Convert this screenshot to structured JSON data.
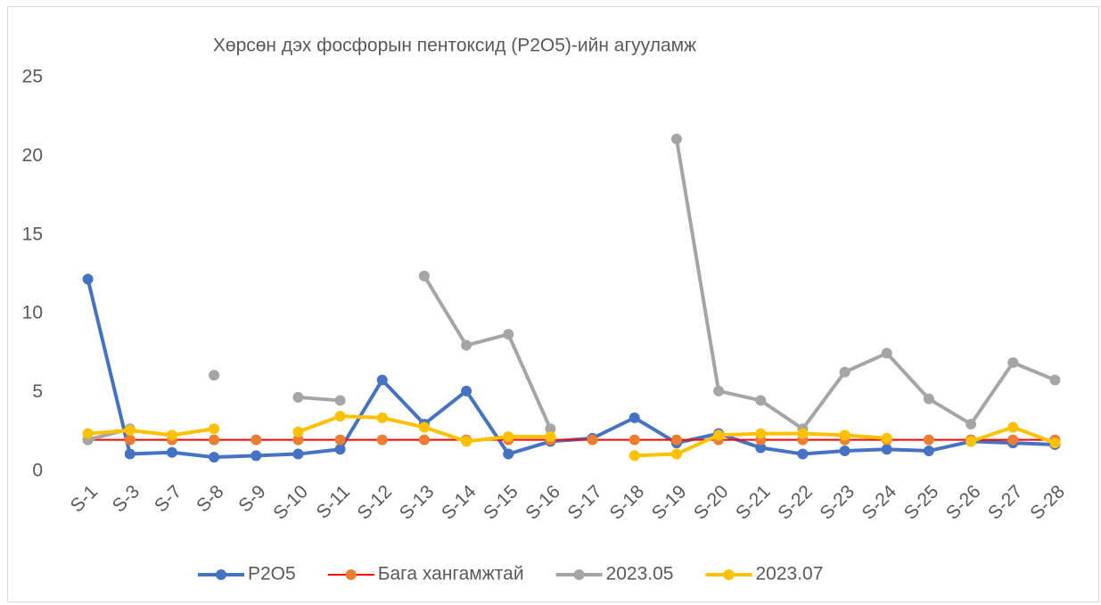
{
  "chart_data": {
    "type": "line",
    "title": "Хөрсөн дэх фосфорын пентоксид (P2O5)-ийн агууламж",
    "categories": [
      "S-1",
      "S-3",
      "S-7",
      "S-8",
      "S-9",
      "S-10",
      "S-11",
      "S-12",
      "S-13",
      "S-14",
      "S-15",
      "S-16",
      "S-17",
      "S-18",
      "S-19",
      "S-20",
      "S-21",
      "S-22",
      "S-23",
      "S-24",
      "S-25",
      "S-26",
      "S-27",
      "S-28"
    ],
    "series": [
      {
        "name": "P2O5",
        "color": "#4472c4",
        "marker_color": "#4472c4",
        "values": [
          12.2,
          1.1,
          1.2,
          0.9,
          1.0,
          1.1,
          1.4,
          5.8,
          3.0,
          5.1,
          1.1,
          1.9,
          2.1,
          3.4,
          1.8,
          2.4,
          1.5,
          1.1,
          1.3,
          1.4,
          1.3,
          1.9,
          1.8,
          1.7
        ]
      },
      {
        "name": "Бага хангамжтай",
        "color": "#ff0000",
        "marker_color": "#ed7d31",
        "values": [
          2,
          2,
          2,
          2,
          2,
          2,
          2,
          2,
          2,
          2,
          2,
          2,
          2,
          2,
          2,
          2,
          2,
          2,
          2,
          2,
          2,
          2,
          2,
          2
        ]
      },
      {
        "name": "2023.05",
        "color": "#a5a5a5",
        "marker_color": "#a5a5a5",
        "values": [
          2.0,
          2.7,
          null,
          6.1,
          null,
          4.7,
          4.5,
          null,
          12.4,
          8.0,
          8.7,
          2.7,
          null,
          null,
          21.1,
          5.1,
          4.5,
          2.7,
          6.3,
          7.5,
          4.6,
          3.0,
          6.9,
          5.8
        ]
      },
      {
        "name": "2023.07",
        "color": "#ffc000",
        "marker_color": "#ffc000",
        "values": [
          2.4,
          2.6,
          2.3,
          2.7,
          null,
          2.5,
          3.5,
          3.4,
          2.8,
          1.9,
          2.2,
          2.2,
          null,
          1.0,
          1.1,
          2.3,
          2.4,
          2.4,
          2.3,
          2.1,
          null,
          1.9,
          2.8,
          1.8
        ]
      }
    ],
    "ylim": [
      0,
      25
    ],
    "yticks": [
      0,
      5,
      10,
      15,
      20,
      25
    ],
    "grid": false,
    "legend": "bottom"
  }
}
